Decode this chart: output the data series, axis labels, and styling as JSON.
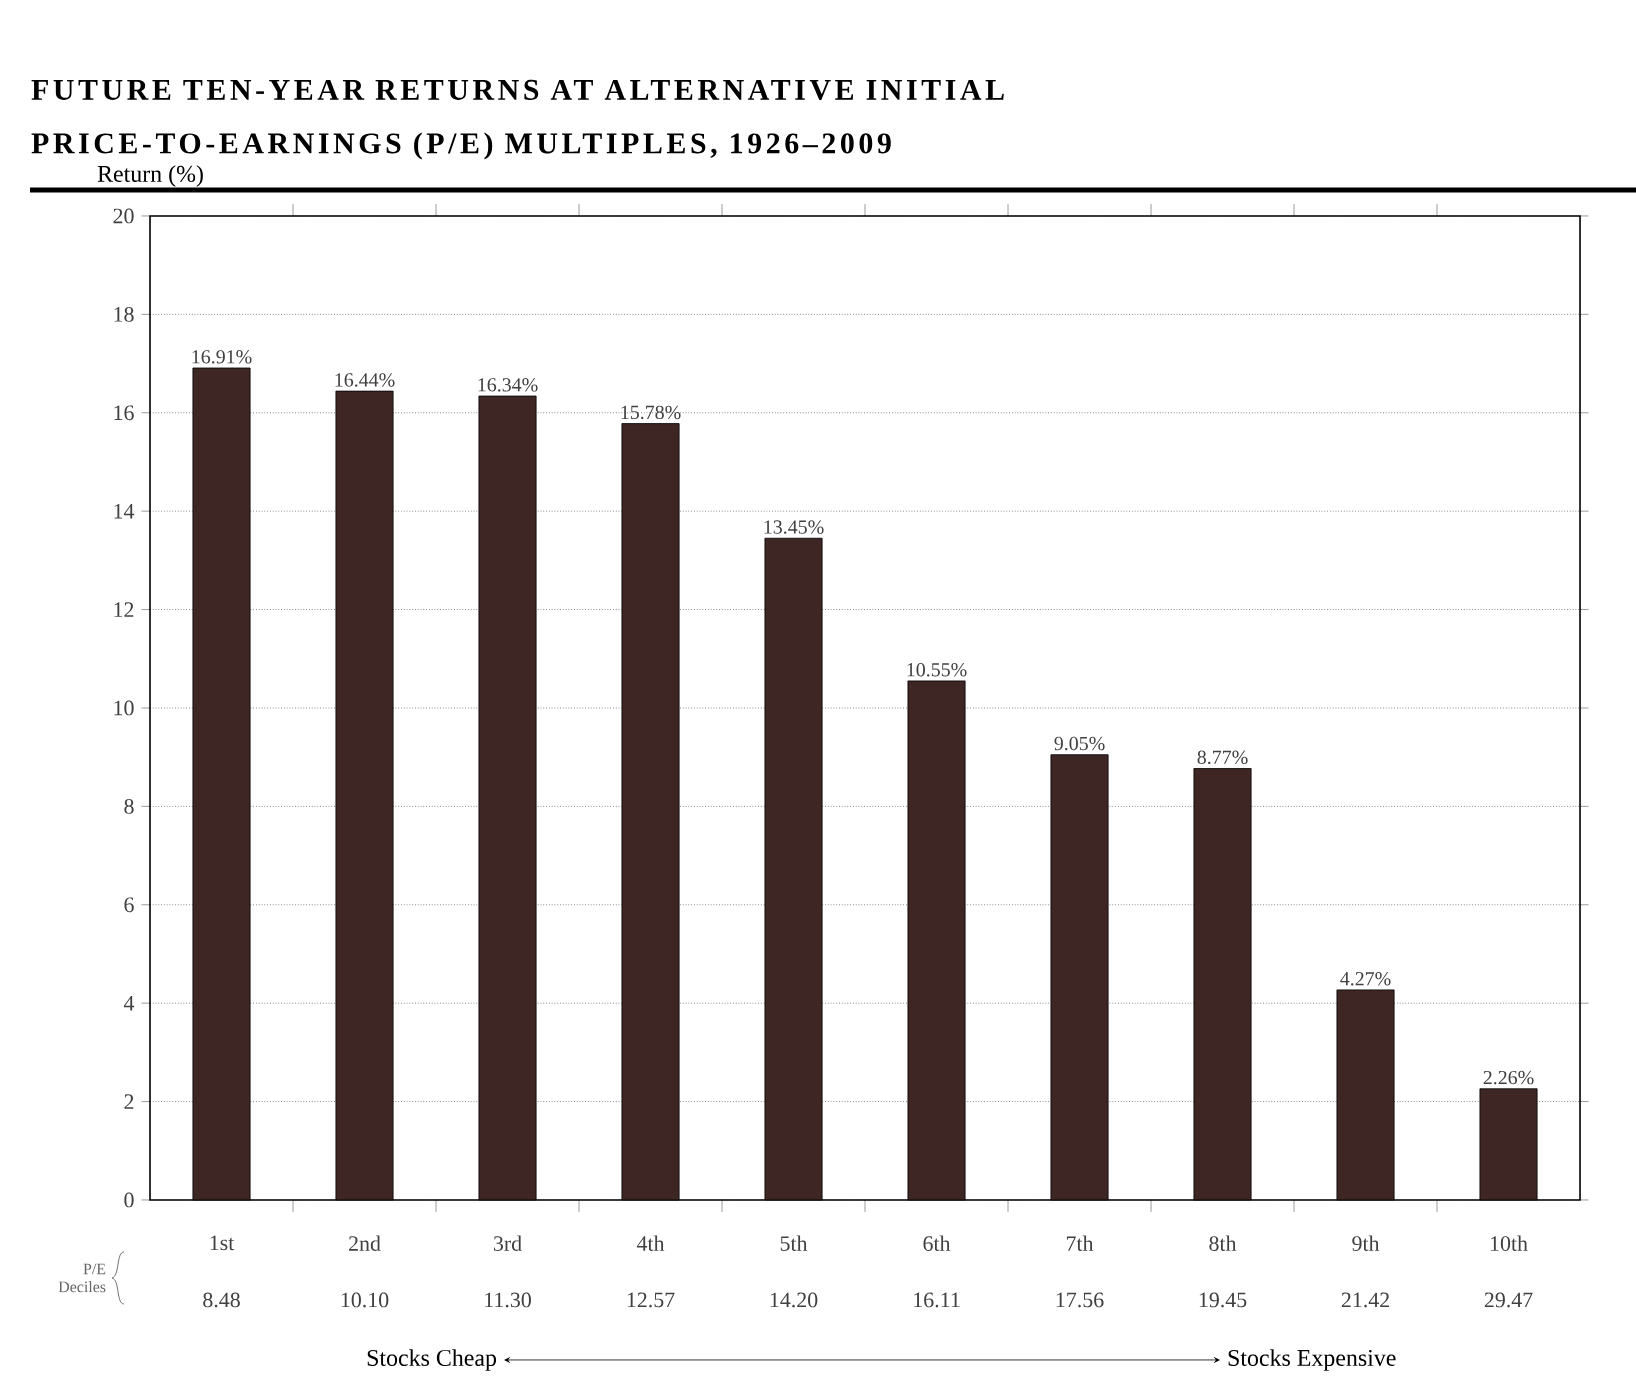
{
  "chart_data": {
    "type": "bar",
    "title": "FUTURE TEN-YEAR RETURNS AT ALTERNATIVE INITIAL",
    "subtitle": "PRICE-TO-EARNINGS (P/E) MULTIPLES, 1926–2009",
    "ylabel": "Return (%)",
    "categories": [
      "1st",
      "2nd",
      "3rd",
      "4th",
      "5th",
      "6th",
      "7th",
      "8th",
      "9th",
      "10th"
    ],
    "values": [
      16.91,
      16.44,
      16.34,
      15.78,
      13.45,
      10.55,
      9.05,
      8.77,
      4.27,
      2.26
    ],
    "value_labels": [
      "16.91%",
      "16.44%",
      "16.34%",
      "15.78%",
      "13.45%",
      "10.55%",
      "9.05%",
      "8.77%",
      "4.27%",
      "2.26%"
    ],
    "color": "#3d2624",
    "ylim": [
      0,
      20
    ],
    "yticks": [
      0,
      2,
      4,
      6,
      8,
      10,
      12,
      14,
      16,
      18,
      20
    ],
    "grid": "y",
    "annotations": [
      "P/E Deciles",
      "8.48",
      "10.10",
      "11.30",
      "12.57",
      "14.20",
      "16.11",
      "17.56",
      "19.45",
      "21.42",
      "29.47",
      "Stocks Cheap",
      "Stocks Expensive"
    ]
  }
}
